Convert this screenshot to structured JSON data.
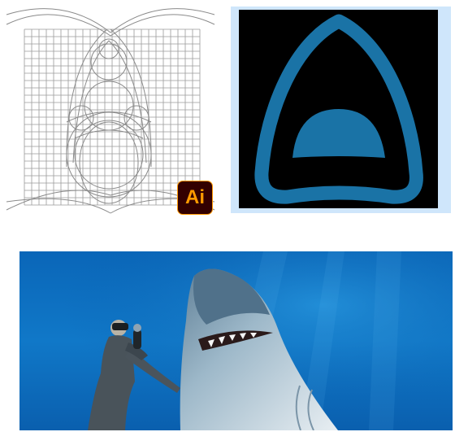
{
  "badge": {
    "text": "Ai",
    "foreground": "#ff9a00",
    "background": "#330000"
  },
  "logo": {
    "icon": "shark-fin-logo-icon",
    "stroke_color": "#1a73a6",
    "background": "#000000"
  },
  "grid": {
    "icon": "construction-grid-icon"
  },
  "photo": {
    "icon": "shark-and-diver-photo"
  }
}
